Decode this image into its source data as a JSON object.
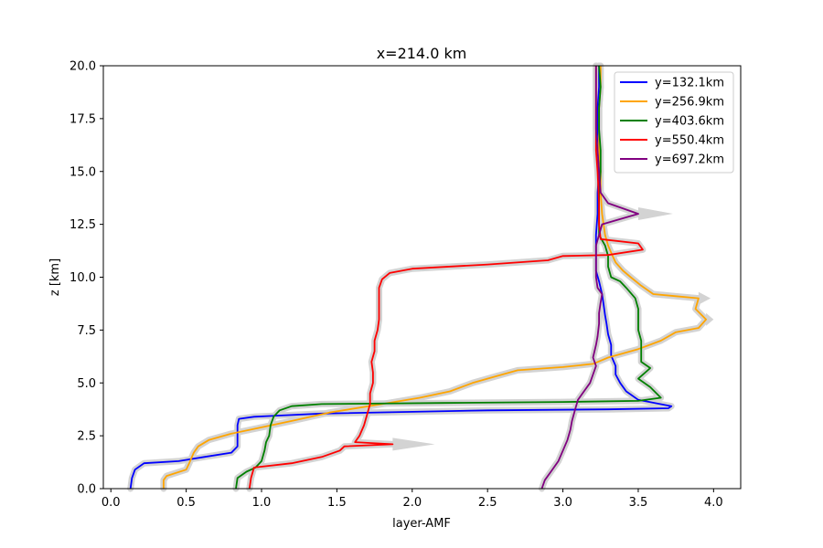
{
  "chart_data": {
    "type": "line",
    "title": "x=214.0 km",
    "xlabel": "layer-AMF",
    "ylabel": "z [km]",
    "xlim": [
      -0.05,
      4.18
    ],
    "ylim": [
      0,
      20
    ],
    "xticks": [
      "0.0",
      "0.5",
      "1.0",
      "1.5",
      "2.0",
      "2.5",
      "3.0",
      "3.5",
      "4.0"
    ],
    "yticks": [
      "0.0",
      "2.5",
      "5.0",
      "7.5",
      "10.0",
      "12.5",
      "15.0",
      "17.5",
      "20.0"
    ],
    "grid": false,
    "legend_position": "top-right",
    "uncertainty_band_color": "#d3d3d3",
    "series": [
      {
        "name": "y=132.1km",
        "color": "#0000ff",
        "points": [
          [
            0.13,
            0
          ],
          [
            0.14,
            0.5
          ],
          [
            0.16,
            0.9
          ],
          [
            0.22,
            1.2
          ],
          [
            0.45,
            1.3
          ],
          [
            0.62,
            1.5
          ],
          [
            0.8,
            1.7
          ],
          [
            0.84,
            2.0
          ],
          [
            0.84,
            2.5
          ],
          [
            0.84,
            3.0
          ],
          [
            0.85,
            3.3
          ],
          [
            0.95,
            3.4
          ],
          [
            1.1,
            3.45
          ],
          [
            1.4,
            3.55
          ],
          [
            2.5,
            3.7
          ],
          [
            3.3,
            3.75
          ],
          [
            3.7,
            3.8
          ],
          [
            3.72,
            3.9
          ],
          [
            3.5,
            4.2
          ],
          [
            3.42,
            4.6
          ],
          [
            3.38,
            5.0
          ],
          [
            3.35,
            5.4
          ],
          [
            3.35,
            5.8
          ],
          [
            3.32,
            6.3
          ],
          [
            3.32,
            6.8
          ],
          [
            3.3,
            7.3
          ],
          [
            3.29,
            7.8
          ],
          [
            3.28,
            8.2
          ],
          [
            3.27,
            8.7
          ],
          [
            3.26,
            9.2
          ],
          [
            3.24,
            9.8
          ],
          [
            3.22,
            10.3
          ],
          [
            3.22,
            10.8
          ],
          [
            3.22,
            11.3
          ],
          [
            3.22,
            12.0
          ],
          [
            3.23,
            13.0
          ],
          [
            3.23,
            14.0
          ],
          [
            3.24,
            15.0
          ],
          [
            3.24,
            16.0
          ],
          [
            3.23,
            17.0
          ],
          [
            3.23,
            18.0
          ],
          [
            3.24,
            19.0
          ],
          [
            3.24,
            20.0
          ]
        ]
      },
      {
        "name": "y=256.9km",
        "color": "#ffa500",
        "points": [
          [
            0.35,
            0
          ],
          [
            0.35,
            0.4
          ],
          [
            0.37,
            0.6
          ],
          [
            0.5,
            0.9
          ],
          [
            0.52,
            1.2
          ],
          [
            0.55,
            1.7
          ],
          [
            0.58,
            2.0
          ],
          [
            0.65,
            2.3
          ],
          [
            0.8,
            2.6
          ],
          [
            1.0,
            2.9
          ],
          [
            1.2,
            3.2
          ],
          [
            1.45,
            3.6
          ],
          [
            1.8,
            4.0
          ],
          [
            2.05,
            4.3
          ],
          [
            2.25,
            4.6
          ],
          [
            2.4,
            5.0
          ],
          [
            2.55,
            5.3
          ],
          [
            2.7,
            5.6
          ],
          [
            3.0,
            5.75
          ],
          [
            3.2,
            5.9
          ],
          [
            3.3,
            6.2
          ],
          [
            3.5,
            6.6
          ],
          [
            3.65,
            7.0
          ],
          [
            3.75,
            7.4
          ],
          [
            3.9,
            7.6
          ],
          [
            3.95,
            8.0
          ],
          [
            3.88,
            8.5
          ],
          [
            3.9,
            9.0
          ],
          [
            3.75,
            9.1
          ],
          [
            3.6,
            9.2
          ],
          [
            3.52,
            9.6
          ],
          [
            3.45,
            10.0
          ],
          [
            3.4,
            10.3
          ],
          [
            3.35,
            10.7
          ],
          [
            3.33,
            11.0
          ],
          [
            3.3,
            11.5
          ],
          [
            3.28,
            12.0
          ],
          [
            3.26,
            13.0
          ],
          [
            3.25,
            14.0
          ],
          [
            3.25,
            15.0
          ],
          [
            3.24,
            16.0
          ],
          [
            3.24,
            17.0
          ],
          [
            3.24,
            18.0
          ],
          [
            3.25,
            19.0
          ],
          [
            3.25,
            20.0
          ]
        ]
      },
      {
        "name": "y=403.6km",
        "color": "#008000",
        "points": [
          [
            0.83,
            0
          ],
          [
            0.84,
            0.5
          ],
          [
            0.9,
            0.8
          ],
          [
            0.96,
            1.0
          ],
          [
            1.0,
            1.3
          ],
          [
            1.02,
            1.8
          ],
          [
            1.03,
            2.2
          ],
          [
            1.05,
            2.5
          ],
          [
            1.06,
            3.0
          ],
          [
            1.08,
            3.4
          ],
          [
            1.12,
            3.7
          ],
          [
            1.2,
            3.9
          ],
          [
            1.4,
            4.0
          ],
          [
            2.2,
            4.05
          ],
          [
            3.0,
            4.1
          ],
          [
            3.5,
            4.15
          ],
          [
            3.65,
            4.3
          ],
          [
            3.58,
            4.8
          ],
          [
            3.5,
            5.2
          ],
          [
            3.58,
            5.7
          ],
          [
            3.52,
            6.0
          ],
          [
            3.52,
            6.5
          ],
          [
            3.52,
            7.0
          ],
          [
            3.5,
            7.5
          ],
          [
            3.5,
            8.0
          ],
          [
            3.5,
            8.5
          ],
          [
            3.48,
            9.0
          ],
          [
            3.42,
            9.5
          ],
          [
            3.38,
            9.8
          ],
          [
            3.32,
            10.0
          ],
          [
            3.3,
            10.5
          ],
          [
            3.3,
            11.0
          ],
          [
            3.28,
            11.5
          ],
          [
            3.24,
            12.0
          ],
          [
            3.24,
            13.0
          ],
          [
            3.24,
            14.0
          ],
          [
            3.25,
            15.0
          ],
          [
            3.25,
            16.0
          ],
          [
            3.24,
            17.0
          ],
          [
            3.24,
            18.0
          ],
          [
            3.25,
            19.0
          ],
          [
            3.24,
            20.0
          ]
        ]
      },
      {
        "name": "y=550.4km",
        "color": "#ff0000",
        "points": [
          [
            0.92,
            0
          ],
          [
            0.93,
            0.5
          ],
          [
            0.95,
            1.0
          ],
          [
            1.2,
            1.2
          ],
          [
            1.4,
            1.5
          ],
          [
            1.52,
            1.8
          ],
          [
            1.55,
            2.0
          ],
          [
            1.87,
            2.1
          ],
          [
            1.62,
            2.2
          ],
          [
            1.65,
            2.5
          ],
          [
            1.68,
            3.0
          ],
          [
            1.7,
            3.5
          ],
          [
            1.72,
            4.0
          ],
          [
            1.72,
            4.5
          ],
          [
            1.74,
            5.0
          ],
          [
            1.74,
            5.5
          ],
          [
            1.73,
            6.0
          ],
          [
            1.75,
            6.5
          ],
          [
            1.75,
            7.0
          ],
          [
            1.77,
            7.5
          ],
          [
            1.78,
            8.0
          ],
          [
            1.78,
            8.5
          ],
          [
            1.78,
            9.0
          ],
          [
            1.78,
            9.5
          ],
          [
            1.8,
            9.9
          ],
          [
            1.85,
            10.2
          ],
          [
            2.0,
            10.4
          ],
          [
            2.5,
            10.6
          ],
          [
            2.9,
            10.8
          ],
          [
            3.0,
            11.0
          ],
          [
            3.3,
            11.05
          ],
          [
            3.53,
            11.3
          ],
          [
            3.5,
            11.6
          ],
          [
            3.25,
            11.8
          ],
          [
            3.24,
            12.5
          ],
          [
            3.24,
            13.5
          ],
          [
            3.23,
            15.0
          ],
          [
            3.22,
            16.0
          ],
          [
            3.22,
            17.0
          ],
          [
            3.22,
            18.0
          ],
          [
            3.22,
            19.0
          ],
          [
            3.22,
            20.0
          ]
        ]
      },
      {
        "name": "y=697.2km",
        "color": "#800080",
        "points": [
          [
            2.86,
            0
          ],
          [
            2.88,
            0.4
          ],
          [
            2.92,
            0.8
          ],
          [
            2.97,
            1.3
          ],
          [
            3.0,
            1.8
          ],
          [
            3.03,
            2.3
          ],
          [
            3.05,
            2.8
          ],
          [
            3.06,
            3.2
          ],
          [
            3.08,
            3.7
          ],
          [
            3.1,
            4.2
          ],
          [
            3.14,
            4.6
          ],
          [
            3.18,
            5.0
          ],
          [
            3.2,
            5.4
          ],
          [
            3.22,
            5.8
          ],
          [
            3.2,
            6.2
          ],
          [
            3.22,
            6.8
          ],
          [
            3.23,
            7.2
          ],
          [
            3.24,
            7.8
          ],
          [
            3.24,
            8.3
          ],
          [
            3.25,
            8.8
          ],
          [
            3.26,
            9.2
          ],
          [
            3.23,
            9.5
          ],
          [
            3.22,
            10.0
          ],
          [
            3.22,
            10.5
          ],
          [
            3.22,
            11.0
          ],
          [
            3.22,
            11.5
          ],
          [
            3.24,
            12.0
          ],
          [
            3.26,
            12.5
          ],
          [
            3.5,
            13.0
          ],
          [
            3.3,
            13.5
          ],
          [
            3.25,
            14.0
          ],
          [
            3.24,
            15.0
          ],
          [
            3.23,
            16.0
          ],
          [
            3.22,
            17.0
          ],
          [
            3.22,
            18.0
          ],
          [
            3.22,
            19.0
          ],
          [
            3.22,
            20.0
          ]
        ]
      }
    ],
    "bands": [
      {
        "points": [
          [
            1.87,
            2.1
          ],
          [
            2.15,
            2.1
          ]
        ]
      },
      {
        "points": [
          [
            3.5,
            13.0
          ],
          [
            3.73,
            13.0
          ]
        ]
      },
      {
        "points": [
          [
            3.95,
            8.0
          ],
          [
            4.0,
            8.0
          ]
        ]
      },
      {
        "points": [
          [
            3.9,
            9.0
          ],
          [
            3.98,
            9.0
          ]
        ]
      }
    ]
  }
}
